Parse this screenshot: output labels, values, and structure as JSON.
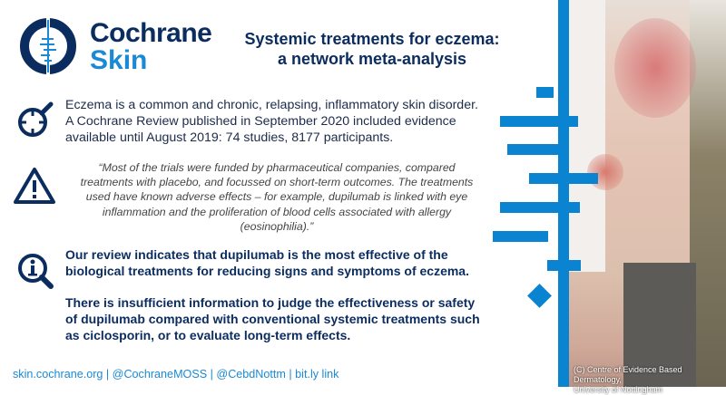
{
  "brand": {
    "name": "Cochrane",
    "sub": "Skin"
  },
  "title": {
    "line1": "Systemic treatments for eczema:",
    "line2": "a network meta-analysis"
  },
  "intro": {
    "lines": [
      "Eczema is a common and chronic, relapsing, inflammatory skin disorder.",
      "A Cochrane Review published in September 2020 included evidence",
      "available until August 2019: 74 studies, 8177 participants."
    ]
  },
  "quote": {
    "lines": [
      "“Most of the trials were funded by pharmaceutical companies, compared",
      "treatments with placebo, and focussed on short-term outcomes. The treatments",
      "used have known adverse effects – for example, dupilumab is linked with eye",
      "inflammation and the proliferation of blood cells associated with allergy",
      "(eosinophilia).”"
    ]
  },
  "findings": {
    "p1": [
      "Our review indicates that dupilumab is the most effective of the",
      "biological treatments for reducing signs and symptoms of eczema."
    ],
    "p2": [
      "There is insufficient information to judge the effectiveness or safety",
      "of dupilumab compared with conventional systemic treatments such",
      "as ciclosporin, or to evaluate long-term effects."
    ]
  },
  "footer": "skin.cochrane.org | @CochraneMOSS | @CebdNottm | bit.ly link",
  "photo_credit": {
    "line1": "(C) Centre of Evidence Based Dermatology,",
    "line2": "University of Nottingham"
  },
  "icons": [
    "cochrane-logo",
    "target-search-icon",
    "warning-icon",
    "info-search-icon"
  ],
  "colors": {
    "navy": "#0b2c5f",
    "blue": "#0a84d0"
  }
}
